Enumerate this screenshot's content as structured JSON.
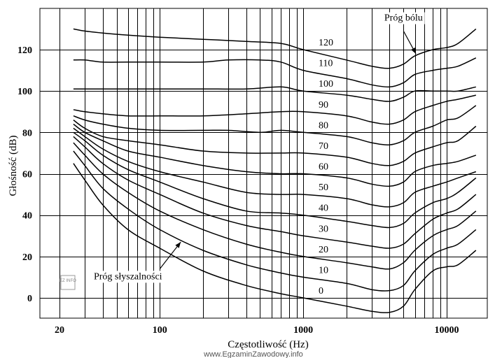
{
  "chart_data": {
    "type": "line",
    "title": "",
    "xlabel": "Częstotliwość (Hz)",
    "ylabel": "Głośność (dB)",
    "x_scale": "log",
    "xlim": [
      15,
      20000
    ],
    "ylim": [
      -8,
      140
    ],
    "x_ticks": [
      {
        "value": 20,
        "label": "20"
      },
      {
        "value": 100,
        "label": "100"
      },
      {
        "value": 1000,
        "label": "1000"
      },
      {
        "value": 10000,
        "label": "10000"
      }
    ],
    "y_ticks": [
      {
        "value": 0,
        "label": "0"
      },
      {
        "value": 20,
        "label": "20"
      },
      {
        "value": 40,
        "label": "40"
      },
      {
        "value": 60,
        "label": "60"
      },
      {
        "value": 80,
        "label": "80"
      },
      {
        "value": 100,
        "label": "100"
      },
      {
        "value": 120,
        "label": "120"
      }
    ],
    "series": [
      {
        "name": "0",
        "points": [
          [
            25,
            65
          ],
          [
            30,
            57
          ],
          [
            40,
            45
          ],
          [
            60,
            33
          ],
          [
            100,
            24
          ],
          [
            200,
            13
          ],
          [
            400,
            6
          ],
          [
            700,
            2
          ],
          [
            1000,
            0
          ],
          [
            2000,
            -4
          ],
          [
            3000,
            -6.5
          ],
          [
            4000,
            -7
          ],
          [
            5000,
            -4
          ],
          [
            6000,
            4
          ],
          [
            8000,
            13
          ],
          [
            10000,
            15
          ],
          [
            12000,
            16
          ],
          [
            16000,
            23
          ]
        ]
      },
      {
        "name": "10",
        "points": [
          [
            25,
            71
          ],
          [
            30,
            64
          ],
          [
            40,
            53
          ],
          [
            60,
            43
          ],
          [
            100,
            33
          ],
          [
            200,
            23
          ],
          [
            400,
            16
          ],
          [
            700,
            12
          ],
          [
            1000,
            10
          ],
          [
            2000,
            7
          ],
          [
            3000,
            4
          ],
          [
            4000,
            3.5
          ],
          [
            5000,
            6
          ],
          [
            6000,
            13
          ],
          [
            8000,
            21
          ],
          [
            10000,
            24
          ],
          [
            12000,
            26
          ],
          [
            16000,
            33
          ]
        ]
      },
      {
        "name": "20",
        "points": [
          [
            25,
            75
          ],
          [
            30,
            69
          ],
          [
            40,
            60
          ],
          [
            60,
            51
          ],
          [
            100,
            42
          ],
          [
            200,
            33
          ],
          [
            400,
            26
          ],
          [
            700,
            22
          ],
          [
            1000,
            20
          ],
          [
            2000,
            17
          ],
          [
            3000,
            15
          ],
          [
            4000,
            14
          ],
          [
            5000,
            17
          ],
          [
            6000,
            23
          ],
          [
            8000,
            30
          ],
          [
            10000,
            33
          ],
          [
            12000,
            35
          ],
          [
            16000,
            42
          ]
        ]
      },
      {
        "name": "30",
        "points": [
          [
            25,
            78
          ],
          [
            30,
            73
          ],
          [
            40,
            65
          ],
          [
            60,
            57
          ],
          [
            100,
            50
          ],
          [
            200,
            41
          ],
          [
            400,
            35
          ],
          [
            700,
            32
          ],
          [
            1000,
            30
          ],
          [
            2000,
            27
          ],
          [
            3000,
            25
          ],
          [
            4000,
            24
          ],
          [
            5000,
            26
          ],
          [
            6000,
            31
          ],
          [
            8000,
            38
          ],
          [
            10000,
            41
          ],
          [
            12000,
            43
          ],
          [
            16000,
            50
          ]
        ]
      },
      {
        "name": "40",
        "points": [
          [
            25,
            80
          ],
          [
            30,
            76
          ],
          [
            40,
            69
          ],
          [
            60,
            62
          ],
          [
            100,
            56
          ],
          [
            200,
            48
          ],
          [
            400,
            42
          ],
          [
            700,
            41
          ],
          [
            1000,
            40
          ],
          [
            2000,
            37
          ],
          [
            3000,
            35
          ],
          [
            4000,
            34
          ],
          [
            5000,
            36
          ],
          [
            6000,
            41
          ],
          [
            8000,
            46
          ],
          [
            10000,
            48
          ],
          [
            12000,
            51
          ],
          [
            16000,
            58
          ]
        ]
      },
      {
        "name": "50",
        "points": [
          [
            25,
            82
          ],
          [
            30,
            78
          ],
          [
            40,
            72
          ],
          [
            60,
            66
          ],
          [
            100,
            61
          ],
          [
            200,
            56
          ],
          [
            400,
            51
          ],
          [
            700,
            50
          ],
          [
            1000,
            50
          ],
          [
            2000,
            48
          ],
          [
            3000,
            45
          ],
          [
            4000,
            44
          ],
          [
            5000,
            46
          ],
          [
            6000,
            51
          ],
          [
            8000,
            54
          ],
          [
            10000,
            56
          ],
          [
            12000,
            58
          ],
          [
            16000,
            61
          ]
        ]
      },
      {
        "name": "60",
        "points": [
          [
            25,
            84
          ],
          [
            30,
            80
          ],
          [
            40,
            76
          ],
          [
            60,
            71
          ],
          [
            100,
            68
          ],
          [
            200,
            64
          ],
          [
            400,
            61
          ],
          [
            700,
            60
          ],
          [
            1000,
            60
          ],
          [
            2000,
            58
          ],
          [
            3000,
            55
          ],
          [
            4000,
            54
          ],
          [
            5000,
            56
          ],
          [
            6000,
            61
          ],
          [
            8000,
            64
          ],
          [
            10000,
            65
          ],
          [
            12000,
            66
          ],
          [
            16000,
            69
          ]
        ]
      },
      {
        "name": "70",
        "points": [
          [
            25,
            86
          ],
          [
            30,
            82
          ],
          [
            40,
            78
          ],
          [
            60,
            76
          ],
          [
            100,
            74
          ],
          [
            200,
            71
          ],
          [
            400,
            70
          ],
          [
            700,
            70
          ],
          [
            1000,
            70
          ],
          [
            2000,
            68
          ],
          [
            3000,
            65
          ],
          [
            4000,
            64
          ],
          [
            5000,
            66
          ],
          [
            6000,
            70
          ],
          [
            8000,
            73
          ],
          [
            10000,
            75
          ],
          [
            12000,
            76
          ],
          [
            16000,
            83
          ]
        ]
      },
      {
        "name": "80",
        "points": [
          [
            25,
            88
          ],
          [
            30,
            86
          ],
          [
            40,
            84
          ],
          [
            60,
            82
          ],
          [
            100,
            81
          ],
          [
            200,
            81
          ],
          [
            300,
            81
          ],
          [
            500,
            80
          ],
          [
            700,
            81
          ],
          [
            1000,
            80
          ],
          [
            2000,
            78
          ],
          [
            3000,
            75
          ],
          [
            4000,
            74
          ],
          [
            5000,
            76
          ],
          [
            6000,
            80
          ],
          [
            8000,
            83
          ],
          [
            10000,
            86
          ],
          [
            12000,
            87
          ],
          [
            16000,
            93
          ]
        ]
      },
      {
        "name": "90",
        "points": [
          [
            25,
            91
          ],
          [
            30,
            90
          ],
          [
            40,
            89
          ],
          [
            60,
            88
          ],
          [
            100,
            88
          ],
          [
            200,
            88
          ],
          [
            400,
            89
          ],
          [
            700,
            90
          ],
          [
            1000,
            90
          ],
          [
            2000,
            88
          ],
          [
            3000,
            85
          ],
          [
            4000,
            84
          ],
          [
            5000,
            86
          ],
          [
            6000,
            90
          ],
          [
            8000,
            93
          ],
          [
            10000,
            95
          ],
          [
            12000,
            96
          ],
          [
            16000,
            98
          ]
        ]
      },
      {
        "name": "100",
        "points": [
          [
            25,
            101
          ],
          [
            30,
            101
          ],
          [
            40,
            101
          ],
          [
            60,
            101
          ],
          [
            100,
            101
          ],
          [
            200,
            101
          ],
          [
            400,
            101
          ],
          [
            700,
            102
          ],
          [
            1000,
            100
          ],
          [
            2000,
            98
          ],
          [
            3000,
            96
          ],
          [
            4000,
            95
          ],
          [
            5000,
            97
          ],
          [
            6000,
            100
          ],
          [
            8000,
            100
          ],
          [
            10000,
            100
          ],
          [
            12000,
            100
          ],
          [
            16000,
            102
          ]
        ]
      },
      {
        "name": "110",
        "points": [
          [
            25,
            115
          ],
          [
            30,
            115
          ],
          [
            40,
            114
          ],
          [
            60,
            114
          ],
          [
            100,
            114
          ],
          [
            200,
            114
          ],
          [
            300,
            115
          ],
          [
            500,
            115
          ],
          [
            700,
            114
          ],
          [
            1000,
            110
          ],
          [
            2000,
            106
          ],
          [
            3000,
            103
          ],
          [
            4000,
            102
          ],
          [
            5000,
            104
          ],
          [
            6000,
            108
          ],
          [
            8000,
            110
          ],
          [
            10000,
            111
          ],
          [
            12000,
            112
          ],
          [
            16000,
            116
          ]
        ]
      },
      {
        "name": "120",
        "points": [
          [
            25,
            130
          ],
          [
            30,
            129
          ],
          [
            40,
            128
          ],
          [
            60,
            127
          ],
          [
            100,
            126
          ],
          [
            200,
            125
          ],
          [
            400,
            124
          ],
          [
            700,
            123
          ],
          [
            1000,
            120
          ],
          [
            2000,
            115
          ],
          [
            3000,
            112
          ],
          [
            4000,
            111
          ],
          [
            5000,
            113
          ],
          [
            6000,
            117
          ],
          [
            8000,
            120
          ],
          [
            10000,
            121
          ],
          [
            12000,
            123
          ],
          [
            16000,
            130
          ]
        ]
      }
    ],
    "curve_labels": [
      {
        "text": "120",
        "x": 1250,
        "y": 120
      },
      {
        "text": "110",
        "x": 1250,
        "y": 110
      },
      {
        "text": "100",
        "x": 1250,
        "y": 100
      },
      {
        "text": "90",
        "x": 1250,
        "y": 90
      },
      {
        "text": "80",
        "x": 1250,
        "y": 80
      },
      {
        "text": "70",
        "x": 1250,
        "y": 70
      },
      {
        "text": "60",
        "x": 1250,
        "y": 60
      },
      {
        "text": "50",
        "x": 1250,
        "y": 50
      },
      {
        "text": "40",
        "x": 1250,
        "y": 40
      },
      {
        "text": "30",
        "x": 1250,
        "y": 30
      },
      {
        "text": "20",
        "x": 1250,
        "y": 20
      },
      {
        "text": "10",
        "x": 1250,
        "y": 10
      },
      {
        "text": "0",
        "x": 1250,
        "y": 0
      }
    ],
    "annotations": [
      {
        "text": "Próg bólu",
        "label_x": 5000,
        "label_y": 134,
        "arrow_from": [
          5000,
          129
        ],
        "arrow_to": [
          6100,
          118
        ]
      },
      {
        "text": "Próg słyszalności",
        "label_x": 60,
        "label_y": 9,
        "arrow_from": [
          100,
          14
        ],
        "arrow_to": [
          140,
          27
        ]
      }
    ],
    "grid": true
  },
  "watermark": "www.EgzaminZawodowy.info",
  "logo_text": "EZ INFO"
}
